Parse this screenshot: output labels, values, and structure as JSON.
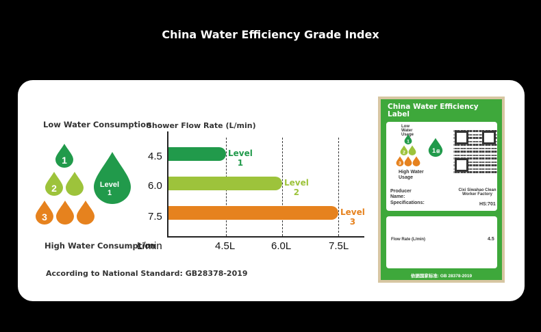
{
  "title": "China Water Efficiency Grade Index",
  "left": {
    "low_water": "Low Water Consumption",
    "high_water": "High Water Consumption",
    "standard": "According to National Standard: GB28378-2019",
    "drops": {
      "one": "1",
      "two": "2",
      "three": "3",
      "big_level": "Level",
      "big_num": "1"
    }
  },
  "chart_data": {
    "type": "bar",
    "title": "Shower Flow Rate (L/min)",
    "categories": [
      "4.5",
      "6.0",
      "7.5"
    ],
    "values": [
      4.5,
      6.0,
      7.5
    ],
    "series_labels": [
      [
        "Level",
        "1"
      ],
      [
        "Level",
        "2"
      ],
      [
        "Level",
        "3"
      ]
    ],
    "x_ticks": [
      "4.5L",
      "6.0L",
      "7.5L"
    ],
    "x_unit": "L/min",
    "colors": [
      "#219a4b",
      "#9dc33b",
      "#e6821e"
    ],
    "grid": true
  },
  "label": {
    "heading": "China Water Efficiency Label",
    "low": "Low Water Usage",
    "high": "High Water Usage",
    "d1": "1",
    "d2": "2",
    "d3": "3",
    "grade": "1",
    "grade_suffix": "级",
    "producer_label": "Producer Name:",
    "producer_value": "Cixi Siwahao Clean Worker Factory",
    "spec_label": "Specifications:",
    "spec_value": "HS:701",
    "flow_label": "Flow Rate (L/min)",
    "flow_value": "4.5",
    "footer": "依据国家标准: GB 28378-2019"
  }
}
